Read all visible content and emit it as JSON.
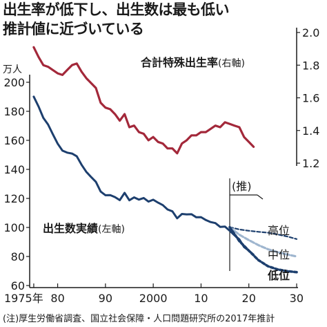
{
  "headline": {
    "line1": "出生率が低下し、出生数は最も低い",
    "line2": "推計値に近づいている"
  },
  "source": "(注)厚生労働省調査、国立社会保障・人口問題研究所の2017年推計",
  "colors": {
    "births": "#1d3f6e",
    "rate": "#a3283a",
    "proj_high": "#1d3f6e",
    "proj_mid": "#9fb6cf",
    "proj_low": "#1d3f6e"
  },
  "chart_data": {
    "type": "line",
    "x_ticks": [
      "1975年",
      "80",
      "90",
      "2000",
      "10",
      "20",
      "30"
    ],
    "x_tick_values": [
      1975,
      1980,
      1990,
      2000,
      2010,
      2020,
      2030
    ],
    "xlim": [
      1974,
      2030
    ],
    "left_axis": {
      "unit": "万人",
      "ticks": [
        "200",
        "180",
        "160",
        "140",
        "120",
        "100",
        "80",
        "60"
      ],
      "tick_values": [
        200,
        180,
        160,
        140,
        120,
        100,
        80,
        60
      ],
      "ylim": [
        60,
        200
      ]
    },
    "right_axis": {
      "ticks": [
        "2.0",
        "1.8",
        "1.6",
        "1.4",
        "1.2"
      ],
      "tick_values": [
        2.0,
        1.8,
        1.6,
        1.4,
        1.2
      ],
      "ylim": [
        1.2,
        2.0
      ]
    },
    "projection_marker": {
      "label": "(推)",
      "year": 2016
    },
    "series": [
      {
        "name": "合計特殊出生率",
        "axis_note": "(右軸)",
        "axis": "right",
        "x": [
          1975,
          1976,
          1977,
          1978,
          1979,
          1980,
          1981,
          1982,
          1983,
          1984,
          1985,
          1986,
          1987,
          1988,
          1989,
          1990,
          1991,
          1992,
          1993,
          1994,
          1995,
          1996,
          1997,
          1998,
          1999,
          2000,
          2001,
          2002,
          2003,
          2004,
          2005,
          2006,
          2007,
          2008,
          2009,
          2010,
          2011,
          2012,
          2013,
          2014,
          2015,
          2016,
          2017,
          2018,
          2019,
          2020,
          2021
        ],
        "values": [
          1.91,
          1.85,
          1.8,
          1.79,
          1.77,
          1.75,
          1.74,
          1.77,
          1.8,
          1.81,
          1.76,
          1.72,
          1.69,
          1.66,
          1.57,
          1.54,
          1.53,
          1.5,
          1.46,
          1.5,
          1.42,
          1.43,
          1.39,
          1.38,
          1.34,
          1.36,
          1.33,
          1.32,
          1.29,
          1.29,
          1.26,
          1.32,
          1.34,
          1.37,
          1.37,
          1.39,
          1.39,
          1.41,
          1.43,
          1.42,
          1.45,
          1.44,
          1.43,
          1.42,
          1.36,
          1.33,
          1.3
        ]
      },
      {
        "name": "出生数実績",
        "axis_note": "(左軸)",
        "axis": "left",
        "x": [
          1975,
          1976,
          1977,
          1978,
          1979,
          1980,
          1981,
          1982,
          1983,
          1984,
          1985,
          1986,
          1987,
          1988,
          1989,
          1990,
          1991,
          1992,
          1993,
          1994,
          1995,
          1996,
          1997,
          1998,
          1999,
          2000,
          2001,
          2002,
          2003,
          2004,
          2005,
          2006,
          2007,
          2008,
          2009,
          2010,
          2011,
          2012,
          2013,
          2014,
          2015,
          2016,
          2017,
          2018,
          2019,
          2020,
          2021
        ],
        "values": [
          190.1,
          183.3,
          175.5,
          170.9,
          164.2,
          157.7,
          152.9,
          151.5,
          150.9,
          149.0,
          143.2,
          138.3,
          134.7,
          131.4,
          124.7,
          122.2,
          122.3,
          120.9,
          118.8,
          123.8,
          118.7,
          120.7,
          119.2,
          120.3,
          117.8,
          119.1,
          117.1,
          115.4,
          112.4,
          111.1,
          106.3,
          109.3,
          109.0,
          109.1,
          107.0,
          107.1,
          105.1,
          103.7,
          103.0,
          100.4,
          100.6,
          97.7,
          94.6,
          91.8,
          86.5,
          84.1,
          81.2
        ]
      },
      {
        "name": "高位",
        "axis": "left",
        "projection": true,
        "style": "high",
        "x": [
          2016,
          2018,
          2020,
          2022,
          2024,
          2026,
          2028,
          2030
        ],
        "values": [
          100.2,
          98.6,
          97.7,
          97.0,
          96.4,
          95.2,
          93.8,
          92.0
        ]
      },
      {
        "name": "中位",
        "axis": "left",
        "projection": true,
        "style": "mid",
        "x": [
          2016,
          2018,
          2020,
          2022,
          2024,
          2026,
          2028,
          2030
        ],
        "values": [
          100.2,
          95.0,
          91.3,
          87.8,
          85.0,
          83.0,
          81.4,
          80.0
        ]
      },
      {
        "name": "低位",
        "axis": "left",
        "projection": true,
        "style": "low",
        "x": [
          2016,
          2018,
          2020,
          2022,
          2024,
          2026,
          2028,
          2030
        ],
        "values": [
          100.2,
          90.6,
          84.0,
          77.5,
          73.3,
          71.1,
          69.9,
          69.2
        ]
      }
    ]
  }
}
